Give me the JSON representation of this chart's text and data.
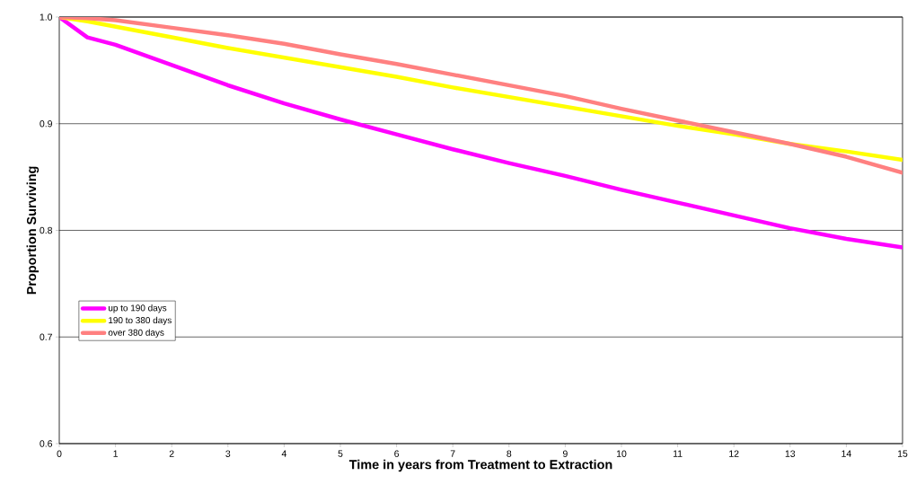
{
  "chart_data": {
    "type": "line",
    "xlabel": "Time in years from Treatment to Extraction",
    "ylabel": "Proportion Surviving",
    "xlim": [
      0,
      15
    ],
    "xticks": [
      0,
      1,
      2,
      3,
      4,
      5,
      6,
      7,
      8,
      9,
      10,
      11,
      12,
      13,
      14,
      15
    ],
    "ylim": [
      0.6,
      1.0
    ],
    "yticks": [
      {
        "value": 0.6,
        "label": "0.6"
      },
      {
        "value": 0.7,
        "label": "0.7"
      },
      {
        "value": 0.8,
        "label": "0.8"
      },
      {
        "value": 0.9,
        "label": "0.9"
      },
      {
        "value": 1.0,
        "label": "1.0"
      }
    ],
    "grid": "y",
    "legend": "left",
    "marker": "none",
    "line_style": "solid",
    "x": [
      0,
      0.5,
      1,
      2,
      3,
      4,
      5,
      6,
      7,
      8,
      9,
      10,
      11,
      12,
      13,
      14,
      15
    ],
    "series": [
      {
        "name": "up to 190 days",
        "color": "#ff00ff",
        "values": [
          1.0,
          0.981,
          0.974,
          0.955,
          0.936,
          0.919,
          0.904,
          0.89,
          0.876,
          0.863,
          0.851,
          0.838,
          0.826,
          0.814,
          0.802,
          0.792,
          0.784
        ]
      },
      {
        "name": "190 to 380 days",
        "color": "#ffff00",
        "values": [
          1.0,
          0.996,
          0.991,
          0.981,
          0.971,
          0.962,
          0.953,
          0.944,
          0.934,
          0.925,
          0.916,
          0.907,
          0.898,
          0.89,
          0.881,
          0.874,
          0.866
        ]
      },
      {
        "name": "over 380 days",
        "color": "#ff8080",
        "values": [
          1.0,
          0.999,
          0.997,
          0.99,
          0.983,
          0.975,
          0.965,
          0.956,
          0.946,
          0.936,
          0.926,
          0.914,
          0.903,
          0.892,
          0.881,
          0.869,
          0.854
        ]
      }
    ]
  }
}
